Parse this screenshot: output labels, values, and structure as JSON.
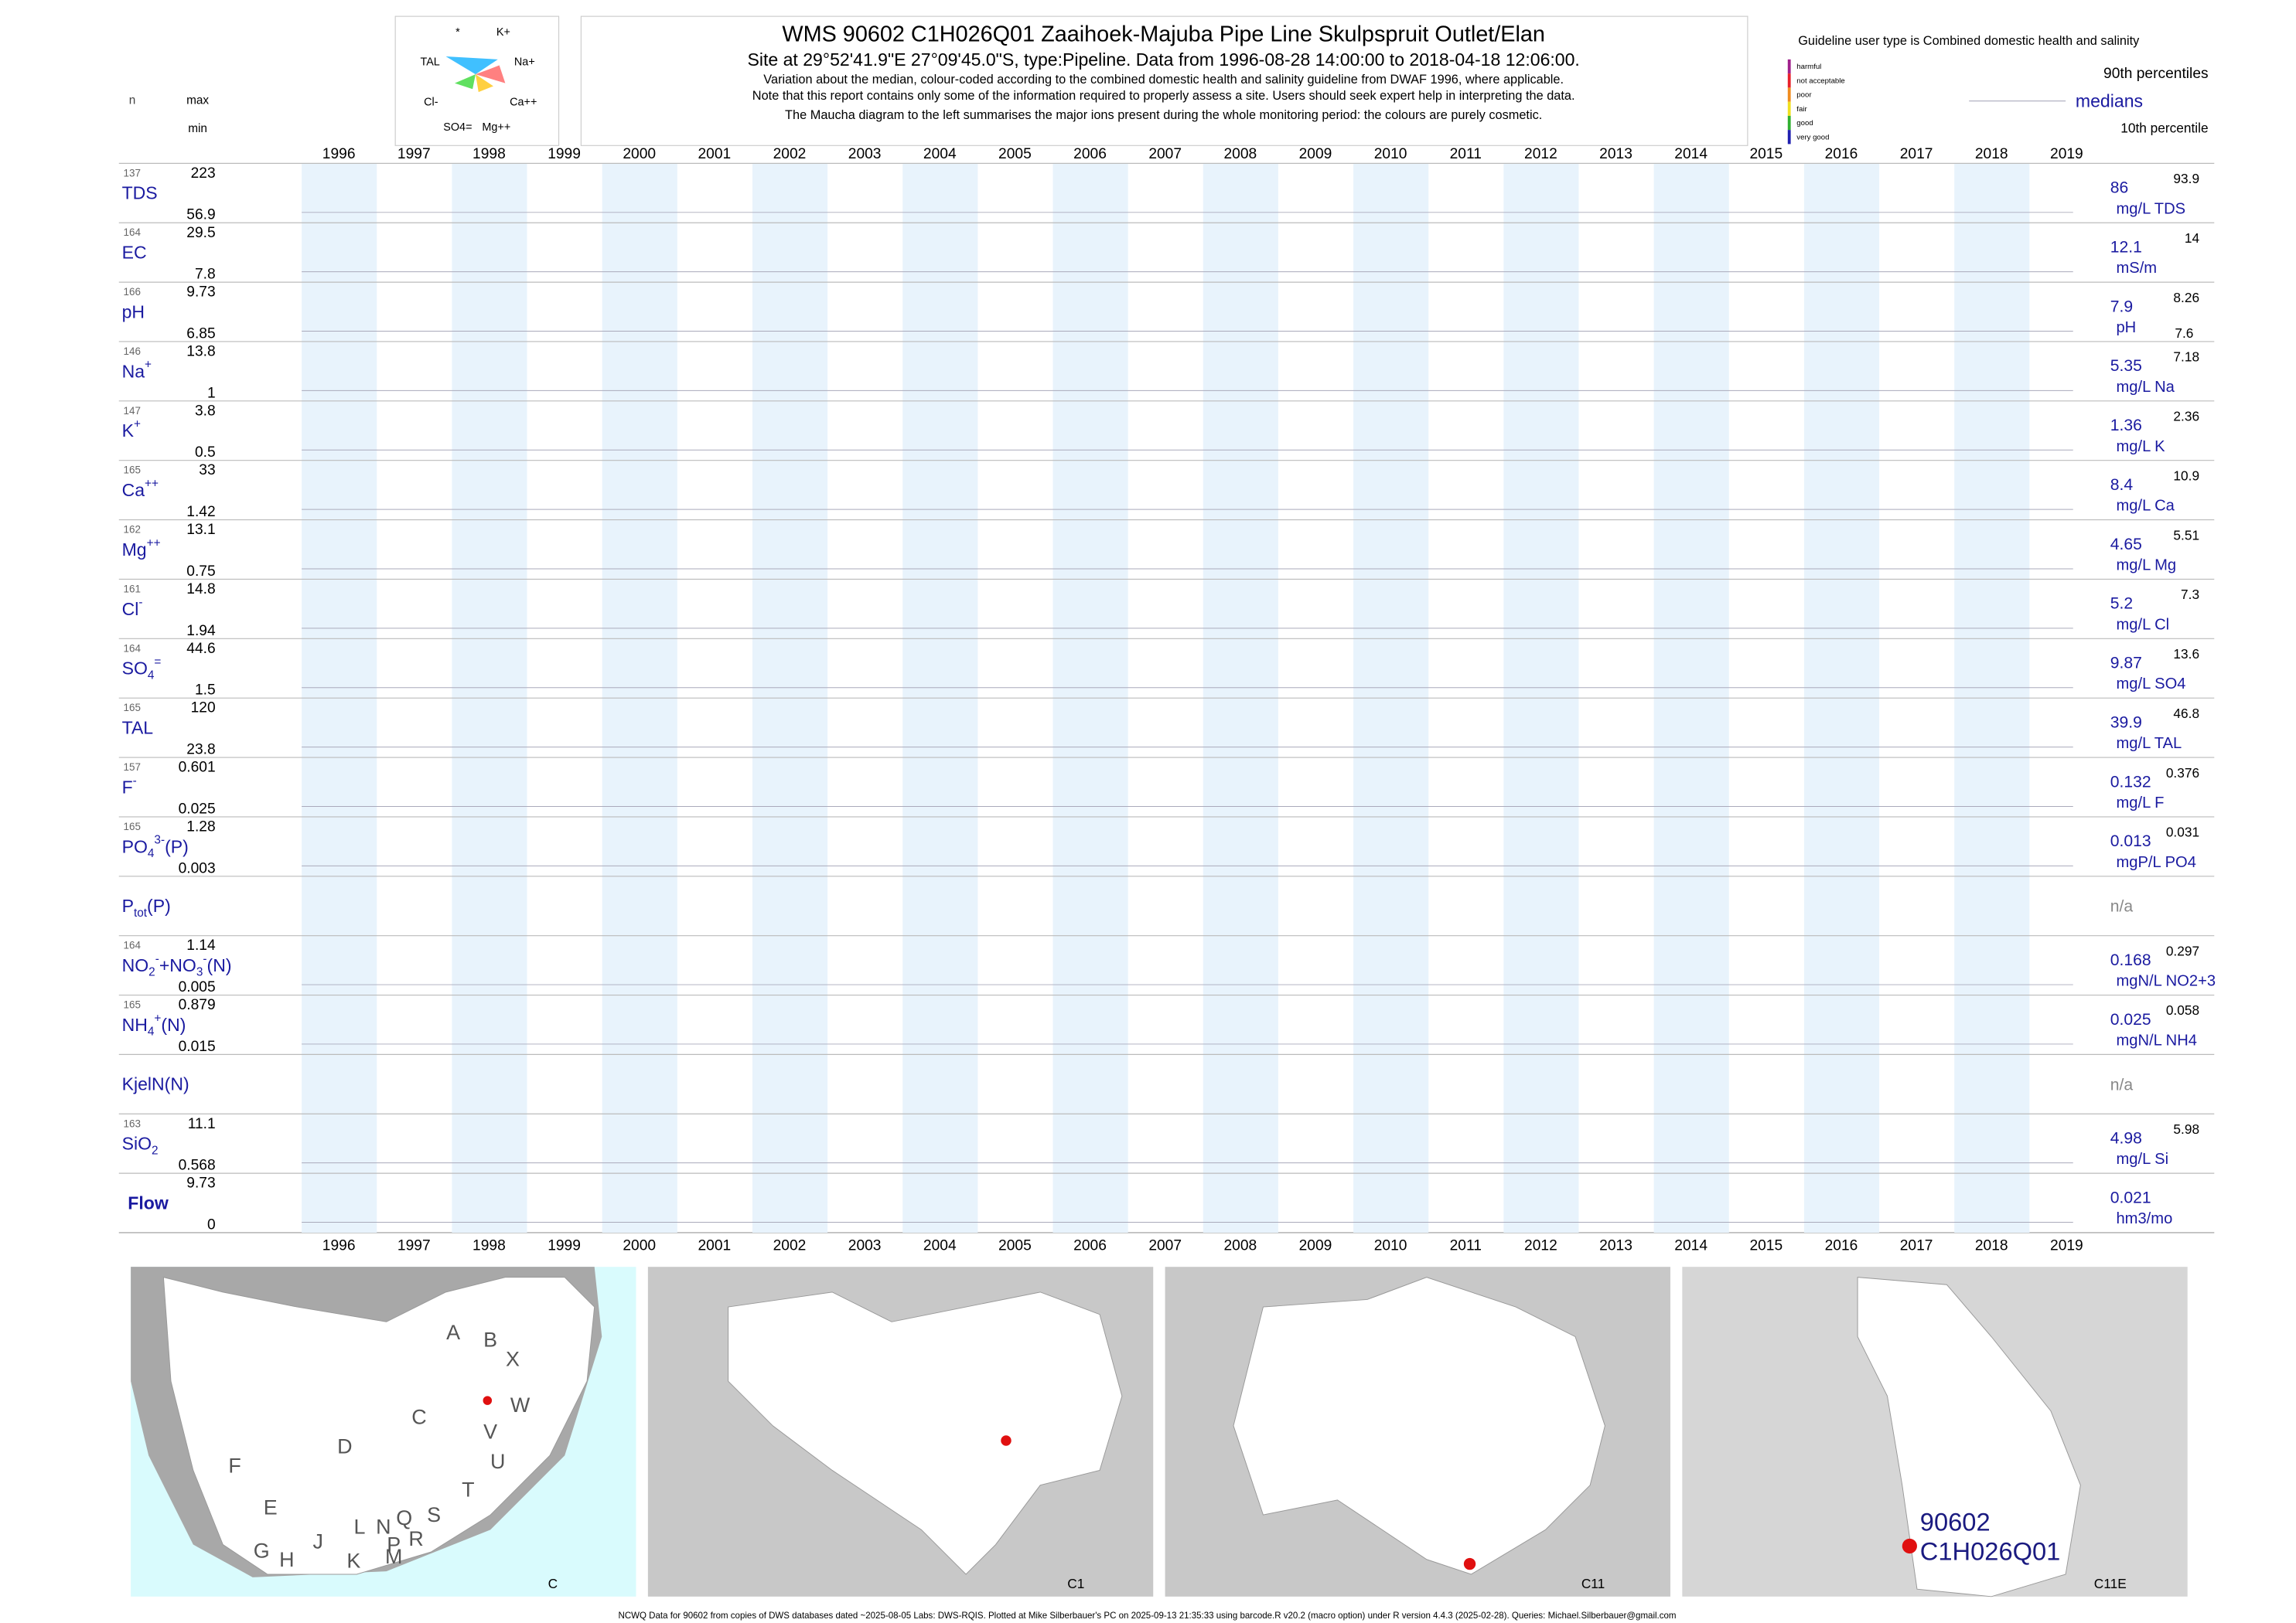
{
  "chart_data": {
    "type": "strip-report",
    "title": "WMS 90602 C1H026Q01 Zaaihoek-Majuba Pipe Line Skulpspruit Outlet/Elan",
    "subtitle": "Site at 29°52'41.9\"E 27°09'45.0\"S, type:Pipeline.  Data from 1996-08-28 14:00:00 to 2018-04-18 12:06:00.",
    "notes": [
      "Variation about the median,  colour-coded according to the combined domestic health and salinity guideline from DWAF 1996, where applicable.",
      "Note that this report contains only some of the information required to properly assess a site. Users should seek expert help in interpreting the data.",
      "The Maucha diagram to the left summarises the major ions present during the whole monitoring period: the colours are purely cosmetic."
    ],
    "maucha_labels": [
      "*",
      "K+",
      "TAL",
      "Na+",
      "Cl-",
      "Ca++",
      "SO4=",
      "Mg++"
    ],
    "left_header": {
      "n": "n",
      "max": "max",
      "min": "min"
    },
    "guideline": {
      "title": "Guideline user type is Combined domestic health and salinity",
      "levels": [
        {
          "name": "harmful",
          "color": "#a0208c"
        },
        {
          "name": "not acceptable",
          "color": "#e8202a"
        },
        {
          "name": "poor",
          "color": "#f08c1e"
        },
        {
          "name": "fair",
          "color": "#f0e020"
        },
        {
          "name": "good",
          "color": "#30b030"
        },
        {
          "name": "very good",
          "color": "#2020b0"
        }
      ],
      "p90_label": "90th percentiles",
      "median_label": "medians",
      "p10_label": "10th percentile"
    },
    "xlim": [
      1996,
      2020
    ],
    "xticks": [
      1996,
      1997,
      1998,
      1999,
      2000,
      2001,
      2002,
      2003,
      2004,
      2005,
      2006,
      2007,
      2008,
      2009,
      2010,
      2011,
      2012,
      2013,
      2014,
      2015,
      2016,
      2017,
      2018,
      2019
    ],
    "rows": [
      {
        "label": [
          {
            "text": "TDS"
          }
        ],
        "n": 137,
        "max": 223,
        "min": 56.9,
        "median": 86,
        "p90": 93.9,
        "unit": "mg/L TDS"
      },
      {
        "label": [
          {
            "text": "EC"
          }
        ],
        "n": 164,
        "max": 29.5,
        "min": 7.8,
        "median": 12.1,
        "p90": 14,
        "unit": "mS/m"
      },
      {
        "label": [
          {
            "text": "pH"
          }
        ],
        "n": 166,
        "max": 9.73,
        "min": 6.85,
        "median": 7.9,
        "p90": 8.26,
        "p10": 7.6,
        "unit": "pH"
      },
      {
        "label": [
          {
            "text": "Na"
          },
          {
            "text": "+",
            "pos": "sup"
          }
        ],
        "n": 146,
        "max": 13.8,
        "min": 1,
        "median": 5.35,
        "p90": 7.18,
        "unit": "mg/L Na"
      },
      {
        "label": [
          {
            "text": "K"
          },
          {
            "text": "+",
            "pos": "sup"
          }
        ],
        "n": 147,
        "max": 3.8,
        "min": 0.5,
        "median": 1.36,
        "p90": 2.36,
        "unit": "mg/L K"
      },
      {
        "label": [
          {
            "text": "Ca"
          },
          {
            "text": "++",
            "pos": "sup"
          }
        ],
        "n": 165,
        "max": 33,
        "min": 1.42,
        "median": 8.4,
        "p90": 10.9,
        "unit": "mg/L Ca"
      },
      {
        "label": [
          {
            "text": "Mg"
          },
          {
            "text": "++",
            "pos": "sup"
          }
        ],
        "n": 162,
        "max": 13.1,
        "min": 0.75,
        "median": 4.65,
        "p90": 5.51,
        "unit": "mg/L Mg"
      },
      {
        "label": [
          {
            "text": "Cl"
          },
          {
            "text": "-",
            "pos": "sup"
          }
        ],
        "n": 161,
        "max": 14.8,
        "min": 1.94,
        "median": 5.2,
        "p90": 7.3,
        "unit": "mg/L Cl"
      },
      {
        "label": [
          {
            "text": "SO"
          },
          {
            "text": "4",
            "pos": "sub"
          },
          {
            "text": "=",
            "pos": "sup"
          }
        ],
        "n": 164,
        "max": 44.6,
        "min": 1.5,
        "median": 9.87,
        "p90": 13.6,
        "unit": "mg/L SO4"
      },
      {
        "label": [
          {
            "text": "TAL"
          }
        ],
        "n": 165,
        "max": 120,
        "min": 23.8,
        "median": 39.9,
        "p90": 46.8,
        "unit": "mg/L TAL"
      },
      {
        "label": [
          {
            "text": "F"
          },
          {
            "text": "-",
            "pos": "sup"
          }
        ],
        "n": 157,
        "max": 0.601,
        "min": 0.025,
        "median": 0.132,
        "p90": 0.376,
        "unit": "mg/L F"
      },
      {
        "label": [
          {
            "text": "PO"
          },
          {
            "text": "4",
            "pos": "sub"
          },
          {
            "text": "3-",
            "pos": "sup"
          },
          {
            "text": "(P)"
          }
        ],
        "n": 165,
        "max": 1.28,
        "min": 0.003,
        "median": 0.013,
        "p90": 0.031,
        "unit": "mgP/L PO4"
      },
      {
        "label": [
          {
            "text": "P"
          },
          {
            "text": "tot",
            "pos": "sub"
          },
          {
            "text": "(P)"
          }
        ],
        "na": "n/a"
      },
      {
        "label": [
          {
            "text": "NO"
          },
          {
            "text": "2",
            "pos": "sub"
          },
          {
            "text": "-",
            "pos": "sup"
          },
          {
            "text": "+NO"
          },
          {
            "text": "3",
            "pos": "sub"
          },
          {
            "text": "-",
            "pos": "sup"
          },
          {
            "text": "(N)"
          }
        ],
        "n": 164,
        "max": 1.14,
        "min": 0.005,
        "median": 0.168,
        "p90": 0.297,
        "unit": "mgN/L NO2+3"
      },
      {
        "label": [
          {
            "text": "NH"
          },
          {
            "text": "4",
            "pos": "sub"
          },
          {
            "text": "+",
            "pos": "sup"
          },
          {
            "text": "(N)"
          }
        ],
        "n": 165,
        "max": 0.879,
        "min": 0.015,
        "median": 0.025,
        "p90": 0.058,
        "unit": "mgN/L NH4"
      },
      {
        "label": [
          {
            "text": "KjelN(N)"
          }
        ],
        "na": "n/a"
      },
      {
        "label": [
          {
            "text": "SiO"
          },
          {
            "text": "2",
            "pos": "sub"
          }
        ],
        "n": 163,
        "max": 11.1,
        "min": 0.568,
        "median": 4.98,
        "p90": 5.98,
        "unit": "mg/L Si"
      },
      {
        "label": [
          {
            "text": "Flow"
          }
        ],
        "bold": true,
        "max": 9.73,
        "min": 0,
        "median": 0.021,
        "unit": "hm3/mo"
      }
    ],
    "maps": [
      {
        "caption": "C",
        "regions": [
          "A",
          "B",
          "X",
          "W",
          "C",
          "V",
          "U",
          "D",
          "F",
          "T",
          "E",
          "S",
          "Q",
          "R",
          "N",
          "L",
          "P",
          "M",
          "K",
          "J",
          "H",
          "G"
        ]
      },
      {
        "caption": "C1"
      },
      {
        "caption": "C11"
      },
      {
        "caption": "C11E",
        "site": [
          "90602",
          "C1H026Q01"
        ]
      }
    ],
    "footer": "NCWQ Data for 90602 from copies of DWS databases dated ~2025-08-05 Labs: DWS-RQIS. Plotted at Mike Silberbauer's PC on 2025-09-13 21:35:33 using barcode.R v20.2 (macro option) under R version 4.4.3 (2025-02-28). Queries: Michael.Silberbauer@gmail.com"
  }
}
